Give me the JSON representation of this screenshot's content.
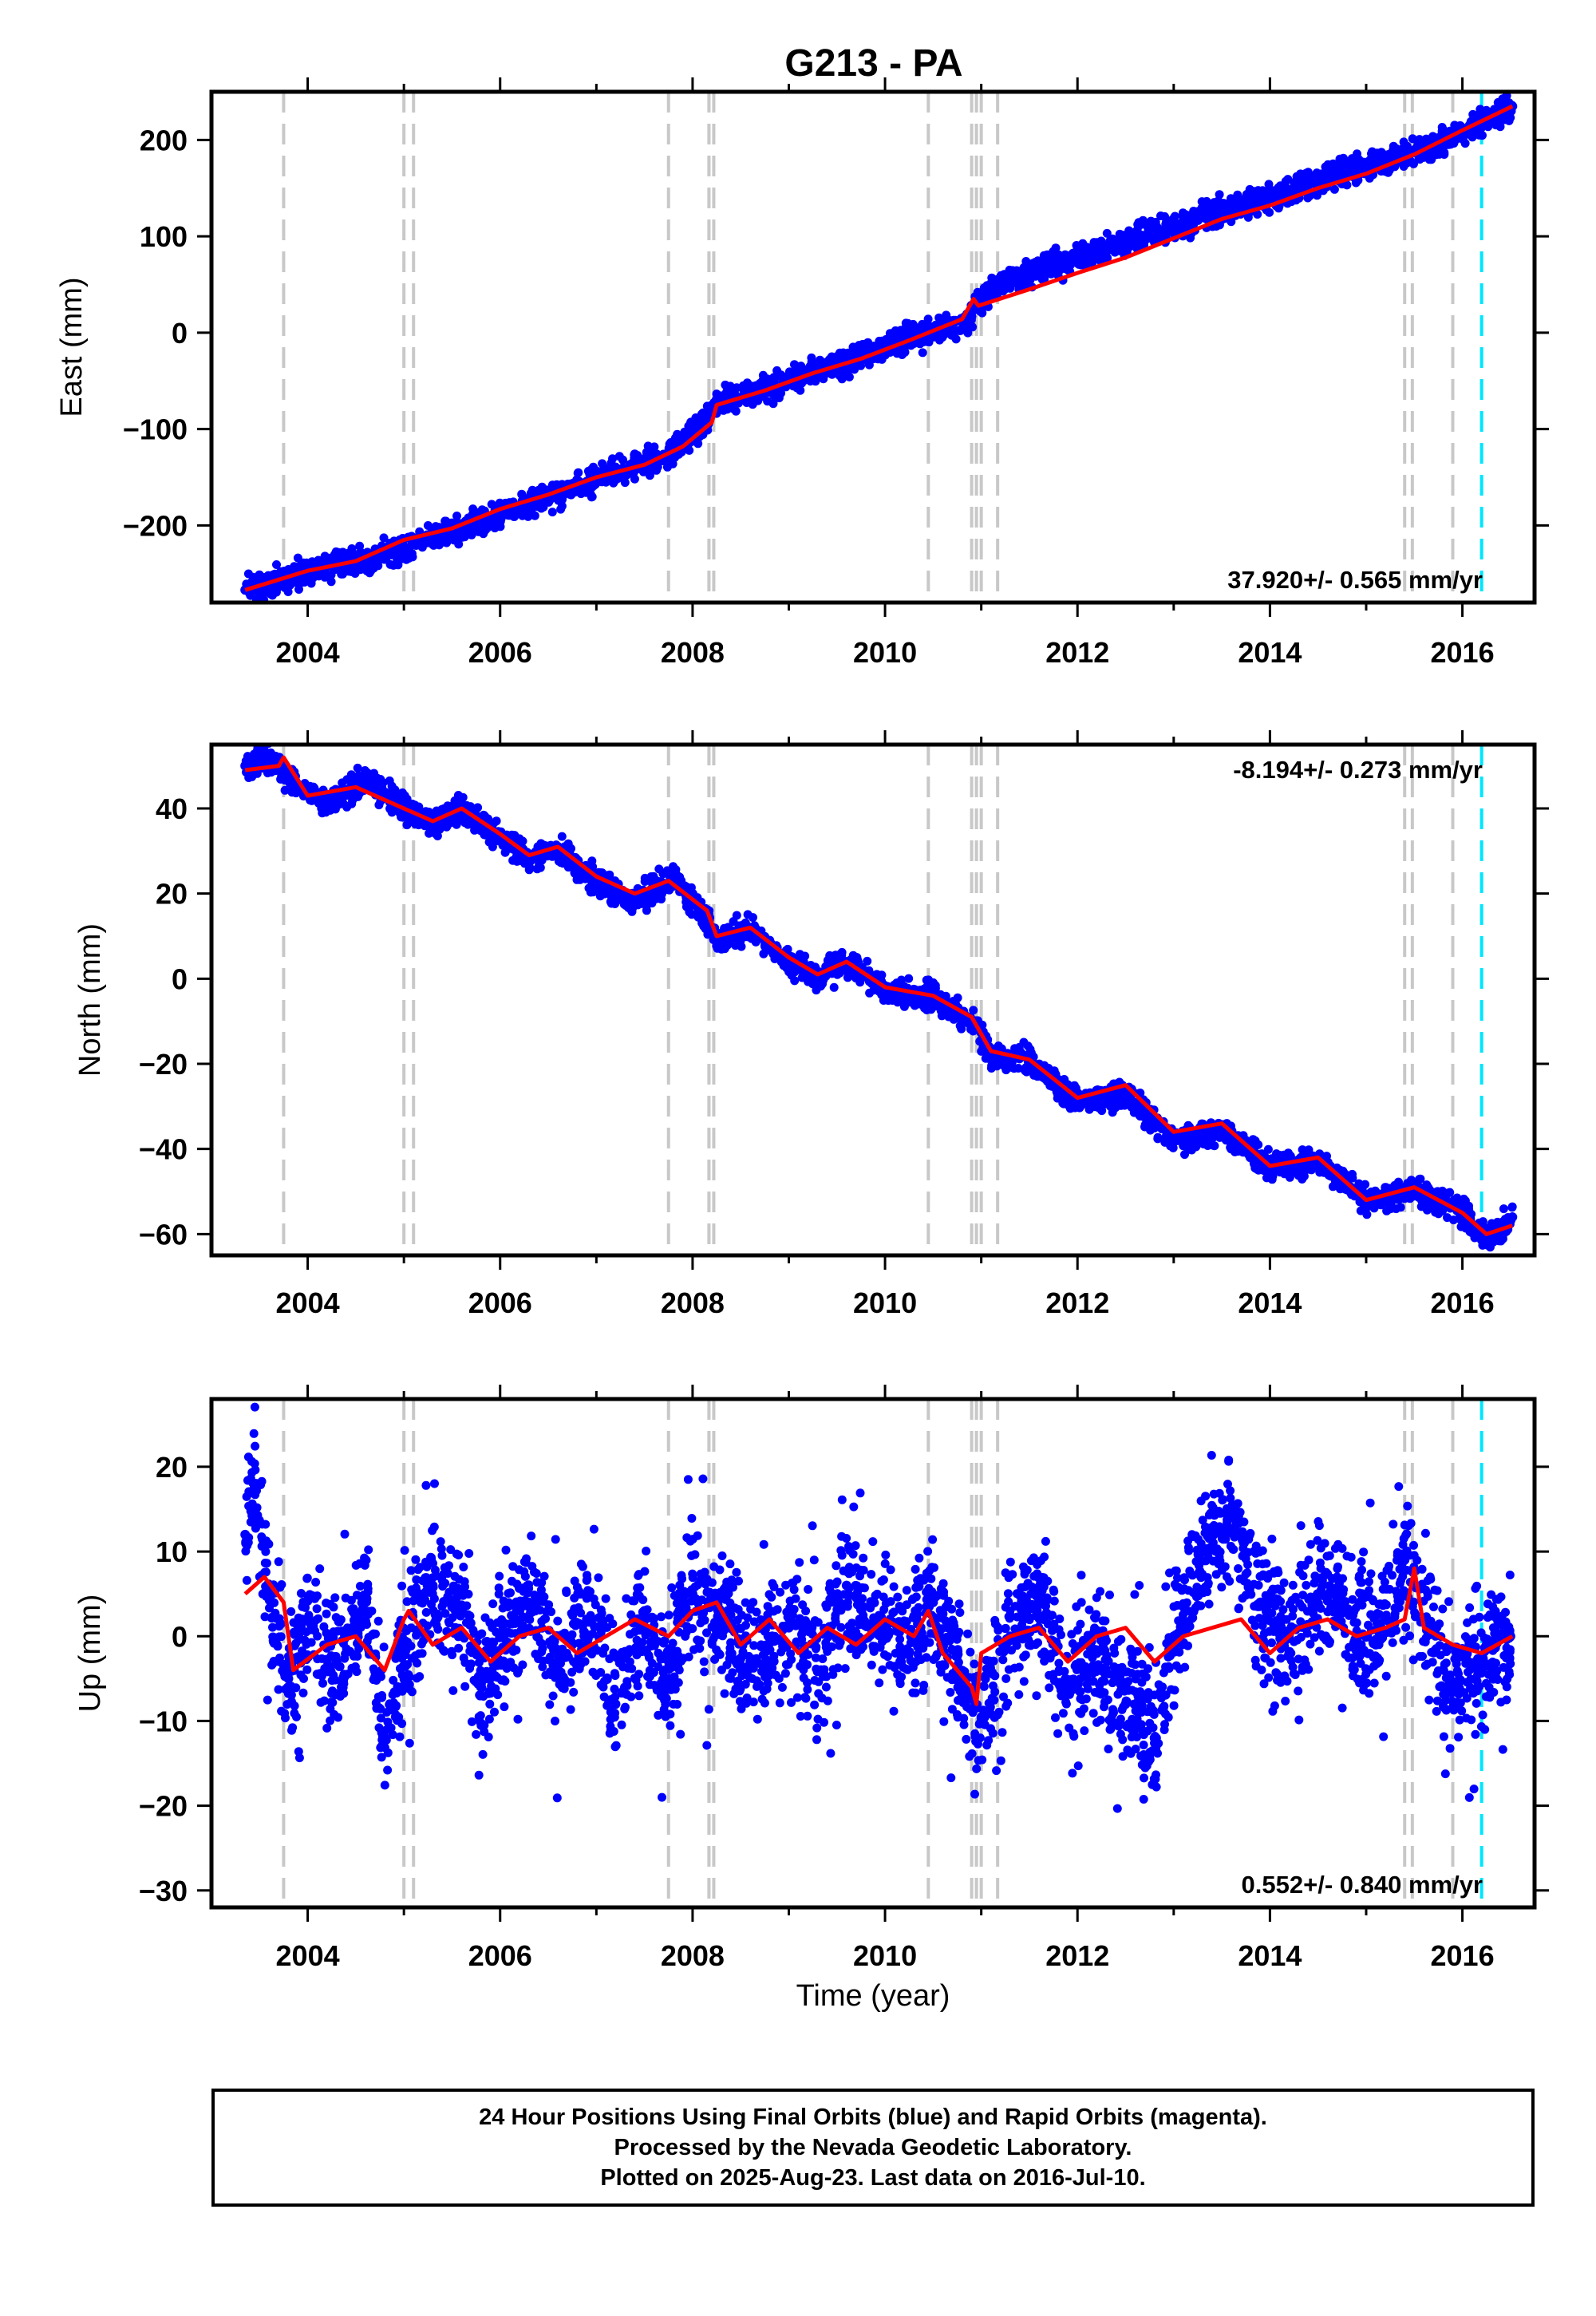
{
  "title": "G213 - PA",
  "xlabel": "Time (year)",
  "x_ticks": [
    "2004",
    "2006",
    "2008",
    "2010",
    "2012",
    "2014",
    "2016"
  ],
  "chart_data": [
    {
      "type": "scatter",
      "ylabel": "East (mm)",
      "xlim": [
        2003.0,
        2016.75
      ],
      "ylim": [
        -280,
        250
      ],
      "y_ticks": [
        "200",
        "100",
        "0",
        "−100",
        "−200"
      ],
      "rate_label": "37.920+/- 0.565 mm/yr",
      "rate_label_position": "bottom-right",
      "series": [
        {
          "color": "#0000ff",
          "marker": "dot",
          "x": [
            2003.35,
            2003.75,
            2004.25,
            2004.75,
            2005.25,
            2005.75,
            2006.25,
            2006.75,
            2007.25,
            2007.75,
            2008.15,
            2008.25,
            2008.75,
            2009.25,
            2009.75,
            2010.25,
            2010.85,
            2010.95,
            2011.25,
            2011.75,
            2012.25,
            2012.75,
            2013.25,
            2013.75,
            2014.25,
            2014.75,
            2015.25,
            2015.75,
            2016.25,
            2016.52
          ],
          "y": [
            -267,
            -255,
            -242,
            -232,
            -213,
            -198,
            -178,
            -162,
            -142,
            -126,
            -90,
            -73,
            -58,
            -39,
            -26,
            -5,
            10,
            28,
            52,
            70,
            85,
            103,
            118,
            135,
            148,
            167,
            180,
            195,
            222,
            235
          ]
        },
        {
          "color": "#ff0000",
          "marker": "line",
          "x": [
            2003.35,
            2004.0,
            2004.5,
            2005.0,
            2005.5,
            2006.0,
            2006.5,
            2007.0,
            2007.5,
            2007.9,
            2008.2,
            2008.25,
            2008.75,
            2009.25,
            2009.75,
            2010.25,
            2010.8,
            2010.92,
            2010.97,
            2011.5,
            2012.0,
            2012.5,
            2013.0,
            2013.5,
            2014.0,
            2014.5,
            2015.0,
            2015.5,
            2016.0,
            2016.52
          ],
          "y": [
            -267,
            -247,
            -237,
            -215,
            -203,
            -183,
            -168,
            -150,
            -137,
            -118,
            -93,
            -75,
            -60,
            -42,
            -27,
            -8,
            14,
            35,
            28,
            45,
            62,
            78,
            98,
            118,
            132,
            150,
            165,
            185,
            210,
            235
          ]
        }
      ]
    },
    {
      "type": "scatter",
      "ylabel": "North (mm)",
      "xlim": [
        2003.0,
        2016.75
      ],
      "ylim": [
        -65,
        55
      ],
      "y_ticks": [
        "40",
        "20",
        "0",
        "−20",
        "−40",
        "−60"
      ],
      "rate_label": "-8.194+/- 0.273 mm/yr",
      "rate_label_position": "top-right",
      "series": [
        {
          "color": "#0000ff",
          "marker": "dot",
          "x": [
            2003.35,
            2003.6,
            2003.8,
            2004.2,
            2004.6,
            2005.0,
            2005.3,
            2005.6,
            2006.0,
            2006.3,
            2006.6,
            2007.0,
            2007.4,
            2007.8,
            2008.15,
            2008.25,
            2008.6,
            2009.0,
            2009.3,
            2009.6,
            2010.0,
            2010.5,
            2010.9,
            2011.1,
            2011.5,
            2012.0,
            2012.5,
            2013.0,
            2013.5,
            2014.0,
            2014.5,
            2015.0,
            2015.5,
            2016.0,
            2016.25,
            2016.52
          ],
          "y": [
            50,
            52,
            47,
            41,
            47,
            40,
            36,
            40,
            33,
            28,
            31,
            23,
            18,
            24,
            14,
            9,
            12,
            4,
            0,
            4,
            -3,
            -4,
            -10,
            -18,
            -19,
            -29,
            -27,
            -38,
            -36,
            -44,
            -43,
            -52,
            -50,
            -55,
            -61,
            -56
          ]
        },
        {
          "color": "#ff0000",
          "marker": "line",
          "x": [
            2003.35,
            2003.7,
            2003.75,
            2004.0,
            2004.5,
            2004.9,
            2005.3,
            2005.6,
            2006.0,
            2006.3,
            2006.6,
            2007.0,
            2007.4,
            2007.75,
            2008.15,
            2008.25,
            2008.6,
            2009.0,
            2009.3,
            2009.6,
            2010.0,
            2010.5,
            2010.9,
            2011.1,
            2011.5,
            2012.0,
            2012.5,
            2013.0,
            2013.5,
            2014.0,
            2014.5,
            2015.0,
            2015.5,
            2016.0,
            2016.25,
            2016.52
          ],
          "y": [
            49,
            50,
            52,
            43,
            45,
            41,
            37,
            40,
            34,
            29,
            31,
            24,
            20,
            23,
            16,
            10,
            12,
            5,
            1,
            4,
            -2,
            -4,
            -9,
            -17,
            -19,
            -28,
            -25,
            -36,
            -34,
            -44,
            -42,
            -52,
            -49,
            -55,
            -60,
            -58
          ]
        }
      ]
    },
    {
      "type": "scatter",
      "ylabel": "Up (mm)",
      "xlim": [
        2003.0,
        2016.75
      ],
      "ylim": [
        -32,
        28
      ],
      "y_ticks": [
        "20",
        "10",
        "0",
        "−10",
        "−20",
        "−30"
      ],
      "rate_label": "0.552+/- 0.840 mm/yr",
      "rate_label_position": "bottom-right",
      "series": [
        {
          "color": "#0000ff",
          "marker": "dot",
          "x": [
            2003.35,
            2003.45,
            2003.6,
            2003.8,
            2004.0,
            2004.3,
            2004.6,
            2004.8,
            2005.0,
            2005.3,
            2005.6,
            2005.8,
            2006.0,
            2006.3,
            2006.6,
            2006.9,
            2007.2,
            2007.5,
            2007.7,
            2008.0,
            2008.3,
            2008.6,
            2009.0,
            2009.3,
            2009.6,
            2009.9,
            2010.2,
            2010.5,
            2010.8,
            2011.0,
            2011.3,
            2011.6,
            2011.9,
            2012.2,
            2012.5,
            2012.8,
            2013.0,
            2013.3,
            2013.6,
            2013.9,
            2014.2,
            2014.5,
            2014.8,
            2015.1,
            2015.4,
            2015.6,
            2015.9,
            2016.2,
            2016.5
          ],
          "y": [
            12,
            18,
            5,
            -5,
            2,
            -3,
            4,
            -12,
            -2,
            6,
            3,
            -6,
            0,
            4,
            -4,
            2,
            -8,
            3,
            -6,
            5,
            2,
            -3,
            1,
            -4,
            6,
            2,
            -2,
            4,
            -5,
            -10,
            0,
            5,
            -6,
            -2,
            -8,
            -12,
            0,
            10,
            14,
            4,
            -2,
            5,
            3,
            -1,
            9,
            2,
            -6,
            -3,
            0
          ]
        },
        {
          "color": "#ff0000",
          "marker": "line",
          "x": [
            2003.35,
            2003.55,
            2003.75,
            2003.85,
            2004.2,
            2004.5,
            2004.8,
            2005.0,
            2005.05,
            2005.3,
            2005.6,
            2005.9,
            2006.2,
            2006.5,
            2006.8,
            2007.1,
            2007.4,
            2007.75,
            2008.0,
            2008.25,
            2008.5,
            2008.8,
            2009.1,
            2009.4,
            2009.7,
            2010.0,
            2010.3,
            2010.45,
            2010.6,
            2010.9,
            2010.95,
            2011.0,
            2011.3,
            2011.6,
            2011.9,
            2012.2,
            2012.5,
            2012.8,
            2013.1,
            2013.4,
            2013.7,
            2014.0,
            2014.3,
            2014.6,
            2014.9,
            2015.2,
            2015.4,
            2015.5,
            2015.6,
            2015.9,
            2016.2,
            2016.52
          ],
          "y": [
            5,
            7,
            4,
            -4,
            -1,
            0,
            -4,
            2,
            3,
            -1,
            1,
            -3,
            0,
            1,
            -2,
            0,
            2,
            0,
            3,
            4,
            -1,
            2,
            -2,
            1,
            -1,
            2,
            0,
            3,
            -2,
            -6,
            -8,
            -2,
            0,
            1,
            -3,
            0,
            1,
            -3,
            0,
            1,
            2,
            -2,
            1,
            2,
            0,
            1,
            2,
            8,
            1,
            -1,
            -2,
            0
          ]
        }
      ]
    }
  ],
  "caption": [
    "24 Hour Positions Using Final Orbits (blue) and Rapid Orbits (magenta).",
    "Processed by the Nevada Geodetic Laboratory.",
    "Plotted on 2025-Aug-23. Last data on 2016-Jul-10."
  ],
  "colors": {
    "final_orbits": "#0000ff",
    "model_fit": "#ff0000",
    "equipment_change": "#c8c8c8",
    "last_data": "#00e5ff"
  },
  "grey_lines_x": [
    2003.75,
    2005.0,
    2005.1,
    2007.75,
    2008.17,
    2008.22,
    2010.45,
    2010.9,
    2010.95,
    2011.0,
    2011.17,
    2015.4,
    2015.48,
    2015.9
  ],
  "cyan_line_x": [
    2016.2
  ]
}
